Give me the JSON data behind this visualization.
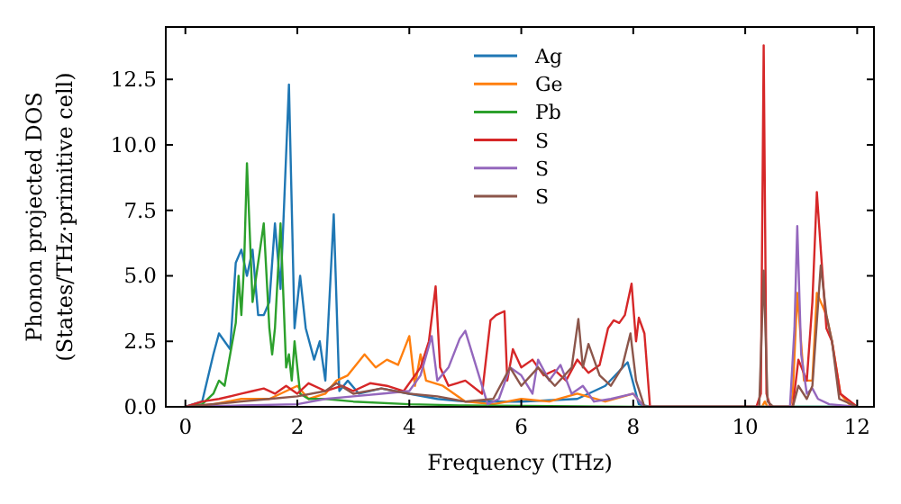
{
  "chart_data": {
    "type": "line",
    "xlabel": "Frequency (THz)",
    "ylabel": "Phonon projected DOS\n(States/THz·primitive cell)",
    "xlim": [
      -0.35,
      12.3
    ],
    "ylim": [
      0,
      14.5
    ],
    "xticks": [
      0,
      2,
      4,
      6,
      8,
      10,
      12
    ],
    "yticks": [
      {
        "value": 0,
        "label": "0.0"
      },
      2.5,
      {
        "value": 5,
        "label": "5.0"
      },
      7.5,
      {
        "value": 10,
        "label": "10.0"
      },
      12.5
    ],
    "grid": false,
    "legend": "top",
    "series": [
      {
        "name": "Ag",
        "color": "#1f77b4",
        "x": [
          0,
          0.3,
          0.5,
          0.6,
          0.8,
          0.9,
          1.0,
          1.1,
          1.2,
          1.3,
          1.4,
          1.5,
          1.6,
          1.7,
          1.75,
          1.85,
          1.95,
          2.05,
          2.15,
          2.3,
          2.4,
          2.5,
          2.65,
          2.75,
          2.9,
          3.1,
          3.5,
          4.0,
          4.5,
          5.0,
          6.0,
          7.0,
          7.5,
          7.9,
          8.1,
          8.3,
          10.2,
          12
        ],
        "values": [
          0,
          0.2,
          2.0,
          2.8,
          2.2,
          5.5,
          6.0,
          5.0,
          6.0,
          3.5,
          3.5,
          4.0,
          7.0,
          4.5,
          7.0,
          12.3,
          3.0,
          5.0,
          3.0,
          1.8,
          2.5,
          1.0,
          7.35,
          0.6,
          1.0,
          0.5,
          0.7,
          0.5,
          0.3,
          0.2,
          0.2,
          0.3,
          0.8,
          1.7,
          0.1,
          0,
          0,
          0
        ]
      },
      {
        "name": "Ge",
        "color": "#ff7f0e",
        "x": [
          0,
          0.5,
          1.0,
          1.5,
          2.0,
          2.2,
          2.5,
          2.7,
          2.9,
          3.2,
          3.4,
          3.6,
          3.8,
          4.0,
          4.1,
          4.2,
          4.3,
          4.6,
          4.8,
          5.0,
          5.5,
          6.0,
          6.5,
          7.0,
          7.5,
          8.0,
          8.2,
          10.3,
          10.35,
          10.4,
          10.8,
          10.85,
          10.93,
          11.05,
          11.2,
          11.28,
          11.45,
          11.55,
          11.7,
          11.9,
          12
        ],
        "values": [
          0,
          0.1,
          0.3,
          0.3,
          0.8,
          0.3,
          0.5,
          1.0,
          1.2,
          2.0,
          1.5,
          1.8,
          1.6,
          2.7,
          0.8,
          2.0,
          1.0,
          0.8,
          0.5,
          0.2,
          0.1,
          0.3,
          0.2,
          0.5,
          0.2,
          0.5,
          0,
          0,
          0.2,
          0,
          0,
          0.5,
          4.35,
          1.0,
          1.0,
          4.35,
          3.5,
          2.5,
          0.5,
          0,
          0
        ]
      },
      {
        "name": "Pb",
        "color": "#2ca02c",
        "x": [
          0,
          0.3,
          0.5,
          0.6,
          0.7,
          0.8,
          0.9,
          0.95,
          1.0,
          1.05,
          1.1,
          1.2,
          1.3,
          1.4,
          1.5,
          1.55,
          1.6,
          1.7,
          1.8,
          1.85,
          1.9,
          1.95,
          2.05,
          2.2,
          2.5,
          3.0,
          4.0,
          5.0,
          8.0,
          12
        ],
        "values": [
          0,
          0.1,
          0.5,
          1.0,
          0.8,
          2.0,
          3.2,
          5.0,
          3.5,
          5.5,
          9.3,
          4.0,
          5.5,
          7.0,
          3.0,
          2.0,
          3.0,
          7.0,
          1.5,
          2.0,
          1.0,
          2.5,
          0.5,
          0.3,
          0.3,
          0.2,
          0.1,
          0.05,
          0,
          0
        ]
      },
      {
        "name": "S",
        "color": "#d62728",
        "x": [
          0,
          0.3,
          0.6,
          1.0,
          1.2,
          1.4,
          1.6,
          1.8,
          2.0,
          2.2,
          2.5,
          2.8,
          3.0,
          3.3,
          3.6,
          3.9,
          4.2,
          4.35,
          4.47,
          4.55,
          4.7,
          5.0,
          5.3,
          5.45,
          5.55,
          5.7,
          5.75,
          5.85,
          6.0,
          6.2,
          6.4,
          6.6,
          6.8,
          7.0,
          7.2,
          7.4,
          7.55,
          7.65,
          7.75,
          7.85,
          7.97,
          8.05,
          8.1,
          8.2,
          8.3,
          10.2,
          10.28,
          10.33,
          10.38,
          10.45,
          10.85,
          10.95,
          11.1,
          11.2,
          11.28,
          11.35,
          11.45,
          11.55,
          11.7,
          12
        ],
        "values": [
          0,
          0.2,
          0.3,
          0.5,
          0.6,
          0.7,
          0.5,
          0.8,
          0.5,
          0.9,
          0.6,
          0.8,
          0.6,
          0.9,
          0.8,
          0.6,
          1.5,
          2.5,
          4.6,
          1.5,
          0.8,
          1.0,
          0.5,
          3.3,
          3.5,
          3.65,
          1.0,
          2.2,
          1.5,
          1.8,
          1.2,
          1.4,
          1.0,
          1.8,
          1.3,
          1.6,
          3.0,
          3.3,
          3.2,
          3.5,
          4.7,
          2.5,
          3.4,
          2.8,
          0,
          0,
          0.5,
          13.8,
          0.5,
          0,
          0,
          1.8,
          1.0,
          4.0,
          8.2,
          6.0,
          3.0,
          2.5,
          0.5,
          0
        ]
      },
      {
        "name": "S",
        "color": "#9467bd",
        "x": [
          0,
          1,
          2,
          2.5,
          3,
          3.5,
          4.0,
          4.2,
          4.4,
          4.5,
          4.7,
          4.9,
          5.0,
          5.2,
          5.4,
          5.6,
          5.8,
          6.0,
          6.2,
          6.3,
          6.5,
          6.7,
          6.9,
          7.1,
          7.3,
          7.6,
          8.0,
          8.2,
          10.8,
          10.88,
          10.93,
          11.0,
          11.1,
          11.2,
          11.3,
          11.5,
          12
        ],
        "values": [
          0,
          0.05,
          0.1,
          0.3,
          0.4,
          0.5,
          0.6,
          1.2,
          2.7,
          1.0,
          1.5,
          2.6,
          2.9,
          1.5,
          0.1,
          0.3,
          1.5,
          1.2,
          0.5,
          1.8,
          1.0,
          1.6,
          0.5,
          0.8,
          0.2,
          0.3,
          0.5,
          0,
          0,
          3.0,
          6.9,
          2.0,
          0.5,
          0.7,
          0.3,
          0.1,
          0
        ]
      },
      {
        "name": "S",
        "color": "#8c564b",
        "x": [
          0,
          1,
          1.5,
          2.0,
          2.5,
          2.7,
          3.0,
          3.5,
          4.0,
          4.5,
          5,
          5.5,
          5.8,
          6.0,
          6.3,
          6.6,
          6.9,
          7.02,
          7.1,
          7.2,
          7.4,
          7.6,
          7.8,
          7.95,
          8.05,
          8.2,
          10.25,
          10.33,
          10.4,
          10.5,
          10.85,
          10.95,
          11.1,
          11.2,
          11.35,
          11.45,
          11.55,
          11.68,
          12
        ],
        "values": [
          0,
          0.2,
          0.3,
          0.4,
          0.6,
          0.9,
          0.5,
          0.7,
          0.5,
          0.4,
          0.2,
          0.3,
          1.5,
          0.8,
          1.5,
          0.8,
          1.5,
          3.35,
          1.5,
          2.4,
          1.2,
          0.8,
          1.5,
          2.8,
          1.0,
          0,
          0,
          5.2,
          0.2,
          0,
          0,
          0.8,
          0.3,
          0.8,
          5.4,
          3.5,
          2.5,
          0.3,
          0
        ]
      }
    ]
  }
}
